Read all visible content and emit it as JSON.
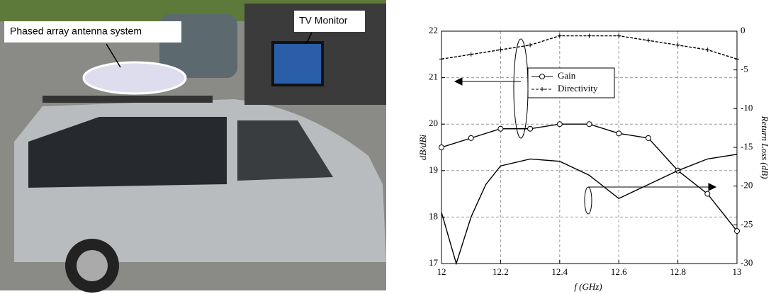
{
  "photo": {
    "labels": [
      "Phased array antenna system",
      "TV Monitor"
    ]
  },
  "chart_data": {
    "type": "line",
    "xlabel": "f (GHz)",
    "ylabel": "dB/dBi",
    "y2label": "Return Loss (dB)",
    "xlim": [
      12,
      13
    ],
    "xticks": [
      12,
      12.2,
      12.4,
      12.6,
      12.8,
      13
    ],
    "ylim": [
      17,
      22
    ],
    "yticks": [
      17,
      18,
      19,
      20,
      21,
      22
    ],
    "y2lim": [
      -30,
      0
    ],
    "y2ticks": [
      -30,
      -25,
      -20,
      -15,
      -10,
      -5,
      0
    ],
    "grid": true,
    "series": [
      {
        "name": "Gain",
        "color": "#000000",
        "marker": "circle",
        "dash": false,
        "x": [
          12,
          12.1,
          12.2,
          12.3,
          12.4,
          12.5,
          12.6,
          12.7,
          12.8,
          12.9,
          13
        ],
        "values": [
          19.5,
          19.7,
          19.9,
          19.9,
          20.0,
          20.0,
          19.8,
          19.7,
          19.0,
          18.5,
          17.7
        ]
      },
      {
        "name": "Directivity",
        "color": "#000000",
        "marker": "plus",
        "dash": true,
        "x": [
          12,
          12.1,
          12.2,
          12.3,
          12.4,
          12.5,
          12.6,
          12.7,
          12.8,
          12.9,
          13
        ],
        "values": [
          21.4,
          21.5,
          21.6,
          21.7,
          21.9,
          21.9,
          21.9,
          21.8,
          21.7,
          21.6,
          21.4
        ]
      },
      {
        "color": "#000000",
        "marker": "none",
        "dash": false,
        "axis": "y2",
        "x": [
          12,
          12.05,
          12.1,
          12.15,
          12.2,
          12.3,
          12.4,
          12.5,
          12.6,
          12.7,
          12.8,
          12.9,
          13
        ],
        "values": [
          -23.4,
          -30,
          -24,
          -19.8,
          -17.4,
          -16.5,
          -16.8,
          -18.6,
          -21.6,
          -19.8,
          -18,
          -16.5,
          -15.9
        ]
      }
    ]
  }
}
